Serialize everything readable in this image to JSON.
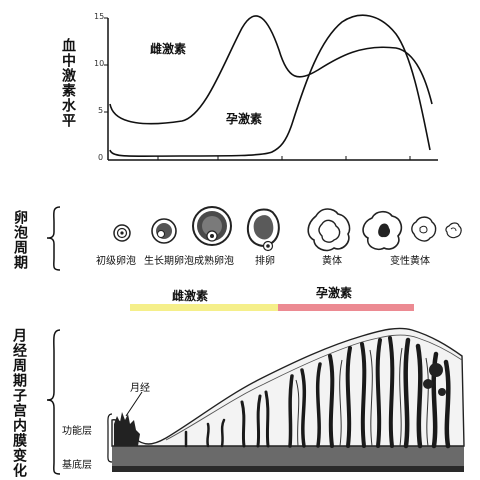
{
  "hormone_chart": {
    "ylabel": "血中激素水平",
    "y_ticks": [
      "0",
      "5",
      "10",
      "15"
    ],
    "series": [
      {
        "name": "雌激素",
        "color": "#111111"
      },
      {
        "name": "孕激素",
        "color": "#111111"
      }
    ]
  },
  "follicle_cycle": {
    "label": "卵泡周期",
    "stages": [
      "初级卵泡",
      "生长期卵泡",
      "成熟卵泡",
      "排卵",
      "黄体",
      "变性黄体"
    ]
  },
  "phase_bar": {
    "estrogen_label": "雌激素",
    "estrogen_color": "#f5ef8a",
    "progesterone_label": "孕激素",
    "progesterone_color": "#ec8a92"
  },
  "endometrium": {
    "label": "月经周期子宫内膜变化",
    "menstruation_label": "月经",
    "functional_layer_label": "功能层",
    "basal_layer_label": "基底层"
  }
}
